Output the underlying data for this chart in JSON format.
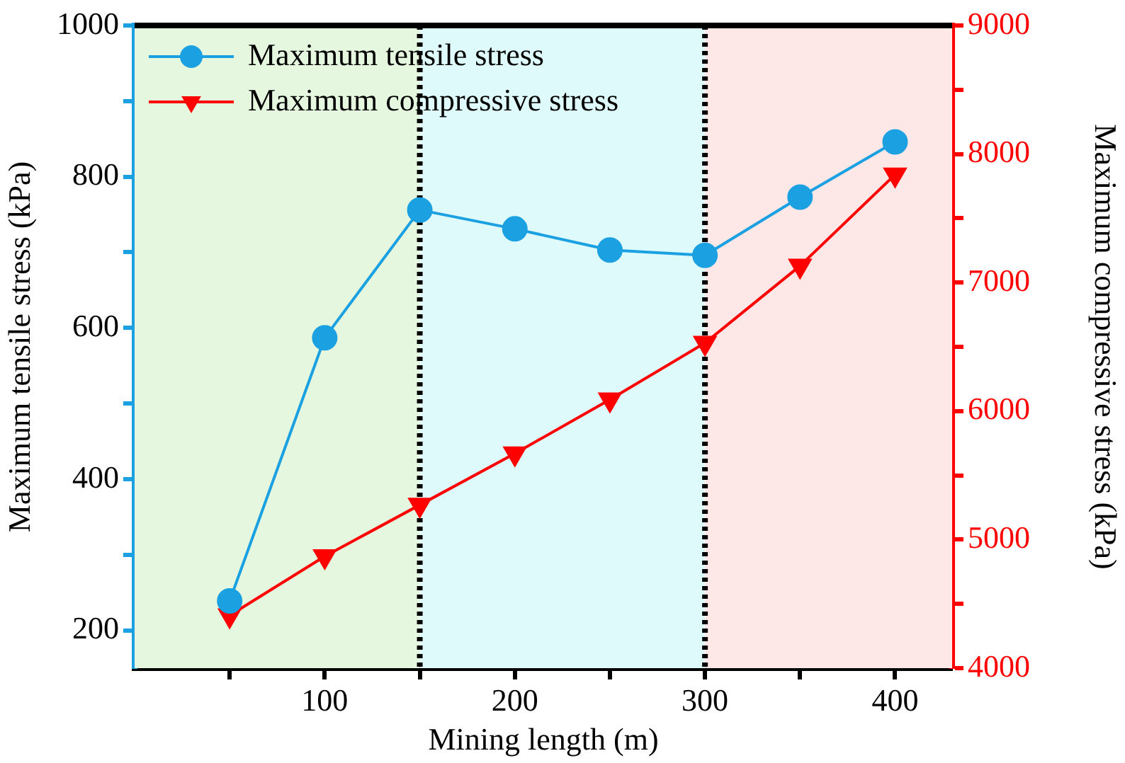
{
  "chart_data": {
    "type": "line",
    "xlabel": "Mining length (m)",
    "ylabel": "Maximum tensile stress (kPa)",
    "y2label": "Maximum compressive stress (kPa)",
    "x": [
      50,
      100,
      150,
      200,
      250,
      300,
      350,
      400
    ],
    "series": [
      {
        "name": "Maximum tensile stress",
        "color": "#1ba1e2",
        "marker": "circle",
        "values": [
          239,
          587,
          756,
          731,
          703,
          696,
          773,
          846
        ]
      },
      {
        "name": "Maximum compressive stress",
        "color": "#ff0000",
        "marker": "triangle",
        "axis": "y2",
        "values": [
          4410,
          4870,
          5270,
          5670,
          6090,
          6530,
          7130,
          7840
        ]
      }
    ],
    "xlim": [
      0,
      430
    ],
    "xticks": [
      {
        "value": 50,
        "label": null
      },
      100,
      {
        "value": 150,
        "label": null
      },
      200,
      {
        "value": 250,
        "label": null
      },
      300,
      {
        "value": 350,
        "label": null
      },
      400
    ],
    "ylim": [
      150,
      1000
    ],
    "yticks": [
      200,
      {
        "value": 300,
        "label": null
      },
      400,
      {
        "value": 500,
        "label": null
      },
      600,
      {
        "value": 700,
        "label": null
      },
      800,
      {
        "value": 900,
        "label": null
      },
      1000
    ],
    "y2lim": [
      4000,
      9000
    ],
    "y2ticks": [
      4000,
      {
        "value": 4500,
        "label": null
      },
      5000,
      {
        "value": 5500,
        "label": null
      },
      6000,
      {
        "value": 6500,
        "label": null
      },
      7000,
      {
        "value": 7500,
        "label": null
      },
      8000,
      {
        "value": 8500,
        "label": null
      },
      9000
    ],
    "bands": [
      {
        "axis": "x",
        "from": 0,
        "to": 150,
        "color": "#e5f8df"
      },
      {
        "axis": "x",
        "from": 150,
        "to": 300,
        "color": "#dffafb"
      },
      {
        "axis": "x",
        "from": 300,
        "to": 430,
        "color": "#fde7e7"
      }
    ],
    "ref_lines": [
      {
        "axis": "x",
        "value": 150,
        "color": "#000000",
        "line_style": "dotted"
      },
      {
        "axis": "x",
        "value": 300,
        "color": "#000000",
        "line_style": "dotted"
      }
    ],
    "legend": "top left",
    "grid": false,
    "line_style": "solid"
  }
}
